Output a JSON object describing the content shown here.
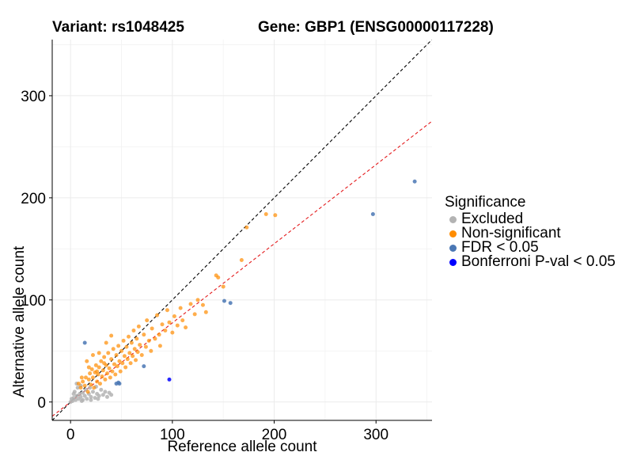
{
  "chart_data": {
    "type": "scatter",
    "title_variant": "Variant: rs1048425",
    "title_gene": "Gene: GBP1 (ENSG00000117228)",
    "xlabel": "Reference allele count",
    "ylabel": "Alternative allele count",
    "xlim": [
      -18,
      355
    ],
    "ylim": [
      -18,
      355
    ],
    "xticks": [
      0,
      100,
      200,
      300
    ],
    "yticks": [
      0,
      100,
      200,
      300
    ],
    "grid": true,
    "legend_position": "right",
    "legend_title": "Significance",
    "reference_lines": [
      {
        "slope": 1.0,
        "intercept": 0,
        "color": "#000000",
        "style": "dashed"
      },
      {
        "slope": 0.775,
        "intercept": 0,
        "color": "#e41a1c",
        "style": "dashed"
      }
    ],
    "series": [
      {
        "name": "Excluded",
        "color": "#b3b3b3",
        "points": [
          [
            0,
            0
          ],
          [
            2,
            1
          ],
          [
            3,
            4
          ],
          [
            5,
            2
          ],
          [
            6,
            6
          ],
          [
            8,
            3
          ],
          [
            9,
            8
          ],
          [
            10,
            5
          ],
          [
            12,
            2
          ],
          [
            12,
            9
          ],
          [
            14,
            6
          ],
          [
            15,
            12
          ],
          [
            16,
            3
          ],
          [
            18,
            8
          ],
          [
            19,
            14
          ],
          [
            20,
            5
          ],
          [
            22,
            10
          ],
          [
            24,
            4
          ],
          [
            25,
            15
          ],
          [
            26,
            8
          ],
          [
            28,
            6
          ],
          [
            30,
            12
          ],
          [
            32,
            7
          ],
          [
            34,
            10
          ],
          [
            36,
            5
          ],
          [
            38,
            9
          ],
          [
            40,
            7
          ],
          [
            4,
            10
          ],
          [
            7,
            14
          ],
          [
            10,
            16
          ],
          [
            6,
            18
          ],
          [
            3,
            8
          ],
          [
            1,
            3
          ],
          [
            11,
            1
          ],
          [
            20,
            2
          ],
          [
            27,
            3
          ]
        ]
      },
      {
        "name": "Non-significant",
        "color": "#ff8c00",
        "points": [
          [
            10,
            14
          ],
          [
            12,
            20
          ],
          [
            14,
            16
          ],
          [
            15,
            24
          ],
          [
            17,
            10
          ],
          [
            18,
            22
          ],
          [
            19,
            28
          ],
          [
            20,
            17
          ],
          [
            21,
            32
          ],
          [
            22,
            24
          ],
          [
            23,
            14
          ],
          [
            24,
            29
          ],
          [
            25,
            36
          ],
          [
            26,
            20
          ],
          [
            27,
            27
          ],
          [
            28,
            34
          ],
          [
            29,
            18
          ],
          [
            30,
            40
          ],
          [
            31,
            25
          ],
          [
            32,
            31
          ],
          [
            33,
            44
          ],
          [
            34,
            22
          ],
          [
            35,
            36
          ],
          [
            36,
            28
          ],
          [
            37,
            48
          ],
          [
            38,
            33
          ],
          [
            39,
            24
          ],
          [
            40,
            42
          ],
          [
            41,
            30
          ],
          [
            42,
            52
          ],
          [
            43,
            37
          ],
          [
            44,
            27
          ],
          [
            45,
            46
          ],
          [
            46,
            35
          ],
          [
            47,
            55
          ],
          [
            48,
            40
          ],
          [
            49,
            30
          ],
          [
            50,
            50
          ],
          [
            51,
            38
          ],
          [
            52,
            60
          ],
          [
            53,
            45
          ],
          [
            54,
            34
          ],
          [
            55,
            54
          ],
          [
            56,
            42
          ],
          [
            57,
            64
          ],
          [
            58,
            48
          ],
          [
            59,
            38
          ],
          [
            60,
            58
          ],
          [
            61,
            45
          ],
          [
            62,
            70
          ],
          [
            63,
            52
          ],
          [
            64,
            41
          ],
          [
            65,
            62
          ],
          [
            66,
            49
          ],
          [
            67,
            74
          ],
          [
            68,
            56
          ],
          [
            70,
            46
          ],
          [
            72,
            66
          ],
          [
            74,
            54
          ],
          [
            75,
            80
          ],
          [
            77,
            60
          ],
          [
            79,
            50
          ],
          [
            80,
            72
          ],
          [
            83,
            62
          ],
          [
            85,
            85
          ],
          [
            87,
            66
          ],
          [
            88,
            55
          ],
          [
            90,
            76
          ],
          [
            93,
            70
          ],
          [
            95,
            90
          ],
          [
            97,
            78
          ],
          [
            100,
            68
          ],
          [
            102,
            84
          ],
          [
            105,
            75
          ],
          [
            108,
            92
          ],
          [
            110,
            80
          ],
          [
            113,
            73
          ],
          [
            118,
            96
          ],
          [
            122,
            86
          ],
          [
            125,
            100
          ],
          [
            130,
            95
          ],
          [
            133,
            88
          ],
          [
            143,
            124
          ],
          [
            145,
            122
          ],
          [
            150,
            113
          ],
          [
            168,
            139
          ],
          [
            173,
            171
          ],
          [
            192,
            184
          ],
          [
            201,
            183
          ],
          [
            16,
            40
          ],
          [
            22,
            46
          ],
          [
            18,
            34
          ],
          [
            28,
            48
          ],
          [
            35,
            58
          ],
          [
            40,
            65
          ],
          [
            26,
            30
          ],
          [
            33,
            38
          ],
          [
            8,
            18
          ],
          [
            11,
            24
          ]
        ]
      },
      {
        "name": "FDR < 0.05",
        "color": "#4a77b4",
        "points": [
          [
            14,
            58
          ],
          [
            45,
            18
          ],
          [
            47,
            19
          ],
          [
            48,
            18
          ],
          [
            72,
            35
          ],
          [
            151,
            99
          ],
          [
            157,
            97
          ],
          [
            297,
            184
          ],
          [
            338,
            216
          ]
        ]
      },
      {
        "name": "Bonferroni P-val < 0.05",
        "color": "#0000ff",
        "points": [
          [
            97,
            22
          ]
        ]
      }
    ]
  }
}
